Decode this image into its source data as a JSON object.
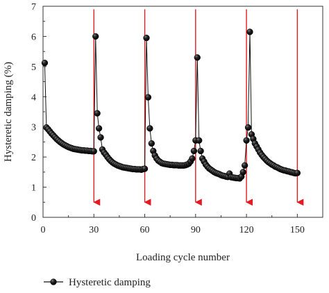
{
  "chart_data": {
    "type": "scatter",
    "xlabel": "Loading cycle number",
    "ylabel": "Hysteretic damping (%)",
    "xlim": [
      0,
      165
    ],
    "ylim": [
      0,
      7
    ],
    "xticks": [
      0,
      30,
      60,
      90,
      120,
      150
    ],
    "yticks": [
      0,
      1,
      2,
      3,
      4,
      5,
      6,
      7
    ],
    "xtick_labels": [
      "0",
      "30",
      "60",
      "90",
      "120",
      "150"
    ],
    "ytick_labels": [
      "0",
      "1",
      "2",
      "3",
      "4",
      "5",
      "6",
      "7"
    ],
    "legend": {
      "position": "bottom-left",
      "entries": [
        "Hysteretic damping"
      ]
    },
    "grid": false,
    "marker_color": "#1a1a1a",
    "arrow_color": "#e31b23",
    "arrows": [
      {
        "x": 30,
        "y_top": 6.9,
        "y_bottom": 0.5
      },
      {
        "x": 60,
        "y_top": 6.9,
        "y_bottom": 0.5
      },
      {
        "x": 90,
        "y_top": 6.9,
        "y_bottom": 0.5
      },
      {
        "x": 120,
        "y_top": 6.9,
        "y_bottom": 0.5
      },
      {
        "x": 150,
        "y_top": 6.9,
        "y_bottom": 0.5
      }
    ],
    "series": [
      {
        "name": "Hysteretic damping",
        "points": [
          [
            1,
            5.12
          ],
          [
            2,
            2.98
          ],
          [
            3,
            2.92
          ],
          [
            4,
            2.85
          ],
          [
            5,
            2.78
          ],
          [
            6,
            2.72
          ],
          [
            7,
            2.66
          ],
          [
            8,
            2.6
          ],
          [
            9,
            2.55
          ],
          [
            10,
            2.5
          ],
          [
            11,
            2.46
          ],
          [
            12,
            2.42
          ],
          [
            13,
            2.39
          ],
          [
            14,
            2.36
          ],
          [
            15,
            2.33
          ],
          [
            16,
            2.31
          ],
          [
            17,
            2.29
          ],
          [
            18,
            2.27
          ],
          [
            19,
            2.26
          ],
          [
            20,
            2.25
          ],
          [
            21,
            2.24
          ],
          [
            22,
            2.23
          ],
          [
            23,
            2.22
          ],
          [
            24,
            2.22
          ],
          [
            25,
            2.21
          ],
          [
            26,
            2.21
          ],
          [
            27,
            2.2
          ],
          [
            28,
            2.2
          ],
          [
            29,
            2.19
          ],
          [
            30,
            2.19
          ],
          [
            31,
            6.0
          ],
          [
            32,
            3.45
          ],
          [
            33,
            2.95
          ],
          [
            34,
            2.65
          ],
          [
            35,
            2.25
          ],
          [
            36,
            2.15
          ],
          [
            37,
            2.08
          ],
          [
            38,
            2.0
          ],
          [
            39,
            1.93
          ],
          [
            40,
            1.87
          ],
          [
            41,
            1.82
          ],
          [
            42,
            1.78
          ],
          [
            43,
            1.75
          ],
          [
            44,
            1.72
          ],
          [
            45,
            1.7
          ],
          [
            46,
            1.68
          ],
          [
            47,
            1.66
          ],
          [
            48,
            1.65
          ],
          [
            49,
            1.64
          ],
          [
            50,
            1.63
          ],
          [
            51,
            1.62
          ],
          [
            52,
            1.61
          ],
          [
            53,
            1.6
          ],
          [
            54,
            1.6
          ],
          [
            55,
            1.59
          ],
          [
            56,
            1.59
          ],
          [
            57,
            1.59
          ],
          [
            58,
            1.58
          ],
          [
            59,
            1.6
          ],
          [
            60,
            1.61
          ],
          [
            61,
            5.95
          ],
          [
            62,
            3.98
          ],
          [
            63,
            2.95
          ],
          [
            64,
            2.45
          ],
          [
            65,
            2.2
          ],
          [
            66,
            2.05
          ],
          [
            67,
            1.95
          ],
          [
            68,
            1.88
          ],
          [
            69,
            1.84
          ],
          [
            70,
            1.8
          ],
          [
            71,
            1.78
          ],
          [
            72,
            1.77
          ],
          [
            73,
            1.76
          ],
          [
            74,
            1.75
          ],
          [
            75,
            1.74
          ],
          [
            76,
            1.74
          ],
          [
            77,
            1.73
          ],
          [
            78,
            1.73
          ],
          [
            79,
            1.73
          ],
          [
            80,
            1.72
          ],
          [
            81,
            1.72
          ],
          [
            82,
            1.72
          ],
          [
            83,
            1.72
          ],
          [
            84,
            1.73
          ],
          [
            85,
            1.75
          ],
          [
            86,
            1.78
          ],
          [
            87,
            1.85
          ],
          [
            88,
            1.95
          ],
          [
            89,
            2.2
          ],
          [
            90,
            2.55
          ],
          [
            91,
            5.3
          ],
          [
            92,
            2.55
          ],
          [
            93,
            2.2
          ],
          [
            94,
            1.95
          ],
          [
            95,
            1.85
          ],
          [
            96,
            1.75
          ],
          [
            97,
            1.68
          ],
          [
            98,
            1.62
          ],
          [
            99,
            1.58
          ],
          [
            100,
            1.54
          ],
          [
            101,
            1.5
          ],
          [
            102,
            1.47
          ],
          [
            103,
            1.45
          ],
          [
            104,
            1.43
          ],
          [
            105,
            1.4
          ],
          [
            106,
            1.38
          ],
          [
            107,
            1.37
          ],
          [
            108,
            1.35
          ],
          [
            109,
            1.34
          ],
          [
            110,
            1.45
          ],
          [
            111,
            1.33
          ],
          [
            112,
            1.32
          ],
          [
            113,
            1.31
          ],
          [
            114,
            1.3
          ],
          [
            115,
            1.3
          ],
          [
            116,
            1.29
          ],
          [
            117,
            1.35
          ],
          [
            118,
            1.5
          ],
          [
            119,
            1.72
          ],
          [
            120,
            2.55
          ],
          [
            121,
            2.98
          ],
          [
            122,
            6.15
          ],
          [
            123,
            2.75
          ],
          [
            124,
            2.6
          ],
          [
            125,
            2.45
          ],
          [
            126,
            2.35
          ],
          [
            127,
            2.25
          ],
          [
            128,
            2.15
          ],
          [
            129,
            2.07
          ],
          [
            130,
            2.0
          ],
          [
            131,
            1.94
          ],
          [
            132,
            1.88
          ],
          [
            133,
            1.83
          ],
          [
            134,
            1.79
          ],
          [
            135,
            1.75
          ],
          [
            136,
            1.72
          ],
          [
            137,
            1.68
          ],
          [
            138,
            1.66
          ],
          [
            139,
            1.63
          ],
          [
            140,
            1.6
          ],
          [
            141,
            1.58
          ],
          [
            142,
            1.56
          ],
          [
            143,
            1.55
          ],
          [
            144,
            1.53
          ],
          [
            145,
            1.52
          ],
          [
            146,
            1.5
          ],
          [
            147,
            1.49
          ],
          [
            148,
            1.47
          ],
          [
            149,
            1.46
          ],
          [
            150,
            1.47
          ]
        ]
      }
    ]
  }
}
